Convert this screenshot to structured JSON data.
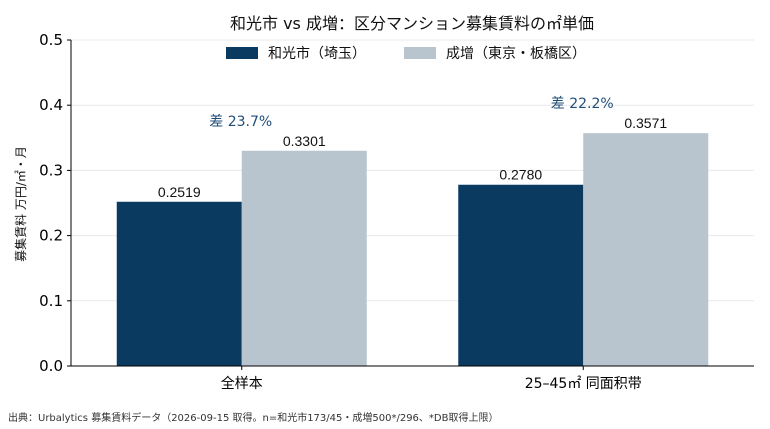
{
  "chart_data": {
    "type": "bar",
    "title": "和光市 vs 成増：区分マンション募集賃料の㎡単価",
    "ylabel": "募集賃料 万円/㎡・月",
    "ylim": [
      0,
      0.5
    ],
    "yticks": [
      "0.0",
      "0.1",
      "0.2",
      "0.3",
      "0.4",
      "0.5"
    ],
    "categories": [
      "全样本",
      "25–45㎡ 同面积带"
    ],
    "series": [
      {
        "name": "和光市（埼玉）",
        "color": "#0a3a60",
        "values": [
          0.2519,
          0.278
        ],
        "labels": [
          "0.2519",
          "0.2780"
        ]
      },
      {
        "name": "成增（東京・板橋区）",
        "color": "#b8c4ce",
        "values": [
          0.3301,
          0.3571
        ],
        "labels": [
          "0.3301",
          "0.3571"
        ]
      }
    ],
    "annotations": [
      "差 23.7%",
      "差 22.2%"
    ],
    "annotation_color": "#1f4e79",
    "grid": true,
    "legend_position": "top-center"
  },
  "source_note": "出典：Urbalytics 募集賃料データ（2026-09-15 取得。n=和光市173/45・成増500*/296、*DB取得上限）"
}
